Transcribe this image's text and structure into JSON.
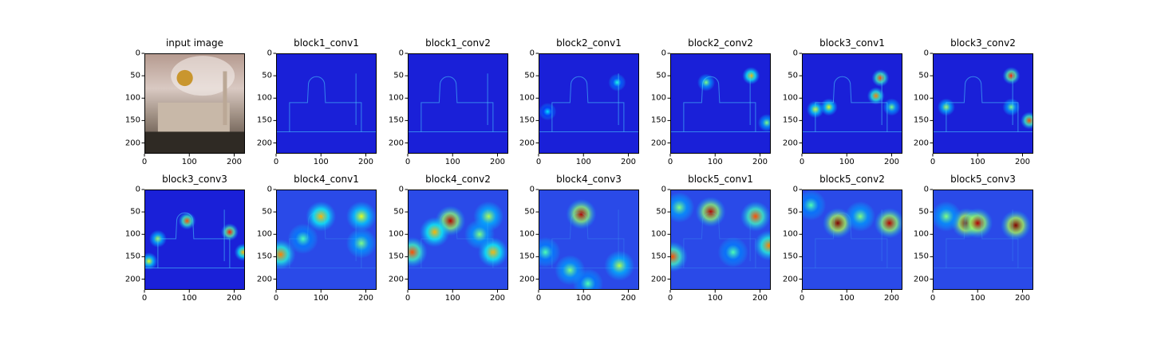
{
  "chart_data": [
    {
      "type": "heatmap",
      "title": "input image",
      "image": "photo",
      "hotspots": [],
      "xticks": [
        0,
        100,
        200
      ],
      "yticks": [
        0,
        50,
        100,
        150,
        200
      ],
      "xlim": [
        0,
        224
      ],
      "ylim": [
        224,
        0
      ]
    },
    {
      "type": "heatmap",
      "title": "block1_conv1",
      "image": "edges",
      "colormap": "jet",
      "hotspots": [],
      "xticks": [
        0,
        100,
        200
      ],
      "yticks": [
        0,
        50,
        100,
        150,
        200
      ],
      "xlim": [
        0,
        224
      ],
      "ylim": [
        224,
        0
      ]
    },
    {
      "type": "heatmap",
      "title": "block1_conv2",
      "image": "edges",
      "colormap": "jet",
      "hotspots": [],
      "xticks": [
        0,
        100,
        200
      ],
      "yticks": [
        0,
        50,
        100,
        150,
        200
      ],
      "xlim": [
        0,
        224
      ],
      "ylim": [
        224,
        0
      ]
    },
    {
      "type": "heatmap",
      "title": "block2_conv1",
      "image": "edges",
      "colormap": "jet",
      "hotspots": [
        [
          175,
          65,
          0.4
        ],
        [
          20,
          130,
          0.35
        ]
      ],
      "xticks": [
        0,
        100,
        200
      ],
      "yticks": [
        0,
        50,
        100,
        150,
        200
      ],
      "xlim": [
        0,
        224
      ],
      "ylim": [
        224,
        0
      ]
    },
    {
      "type": "heatmap",
      "title": "block2_conv2",
      "image": "edges",
      "colormap": "jet",
      "hotspots": [
        [
          180,
          50,
          0.7
        ],
        [
          80,
          65,
          0.5
        ],
        [
          215,
          155,
          0.5
        ]
      ],
      "xticks": [
        0,
        100,
        200
      ],
      "yticks": [
        0,
        50,
        100,
        150,
        200
      ],
      "xlim": [
        0,
        224
      ],
      "ylim": [
        224,
        0
      ]
    },
    {
      "type": "heatmap",
      "title": "block3_conv1",
      "image": "edges",
      "colormap": "jet",
      "hotspots": [
        [
          175,
          55,
          0.8
        ],
        [
          165,
          95,
          0.75
        ],
        [
          30,
          125,
          0.6
        ],
        [
          60,
          120,
          0.6
        ],
        [
          200,
          120,
          0.5
        ]
      ],
      "xticks": [
        0,
        100,
        200
      ],
      "yticks": [
        0,
        50,
        100,
        150,
        200
      ],
      "xlim": [
        0,
        224
      ],
      "ylim": [
        224,
        0
      ]
    },
    {
      "type": "heatmap",
      "title": "block3_conv2",
      "image": "edges",
      "colormap": "jet",
      "hotspots": [
        [
          175,
          50,
          0.85
        ],
        [
          215,
          150,
          0.8
        ],
        [
          30,
          120,
          0.55
        ],
        [
          175,
          120,
          0.5
        ]
      ],
      "xticks": [
        0,
        100,
        200
      ],
      "yticks": [
        0,
        50,
        100,
        150,
        200
      ],
      "xlim": [
        0,
        224
      ],
      "ylim": [
        224,
        0
      ]
    },
    {
      "type": "heatmap",
      "title": "block3_conv3",
      "image": "edges",
      "colormap": "jet",
      "hotspots": [
        [
          95,
          70,
          0.8
        ],
        [
          190,
          95,
          0.85
        ],
        [
          30,
          110,
          0.55
        ],
        [
          220,
          140,
          0.7
        ],
        [
          10,
          160,
          0.6
        ]
      ],
      "xticks": [
        0,
        100,
        200
      ],
      "yticks": [
        0,
        50,
        100,
        150,
        200
      ],
      "xlim": [
        0,
        224
      ],
      "ylim": [
        224,
        0
      ]
    },
    {
      "type": "heatmap",
      "title": "block4_conv1",
      "image": "blobs",
      "colormap": "jet",
      "hotspots": [
        [
          100,
          60,
          0.7
        ],
        [
          190,
          60,
          0.6
        ],
        [
          10,
          145,
          0.75
        ],
        [
          190,
          120,
          0.5
        ],
        [
          60,
          110,
          0.45
        ]
      ],
      "xticks": [
        0,
        100,
        200
      ],
      "yticks": [
        0,
        50,
        100,
        150,
        200
      ],
      "xlim": [
        0,
        224
      ],
      "ylim": [
        224,
        0
      ]
    },
    {
      "type": "heatmap",
      "title": "block4_conv2",
      "image": "blobs",
      "colormap": "jet",
      "hotspots": [
        [
          95,
          70,
          0.95
        ],
        [
          60,
          95,
          0.7
        ],
        [
          10,
          140,
          0.8
        ],
        [
          190,
          140,
          0.7
        ],
        [
          180,
          60,
          0.55
        ],
        [
          160,
          100,
          0.5
        ]
      ],
      "xticks": [
        0,
        100,
        200
      ],
      "yticks": [
        0,
        50,
        100,
        150,
        200
      ],
      "xlim": [
        0,
        224
      ],
      "ylim": [
        224,
        0
      ]
    },
    {
      "type": "heatmap",
      "title": "block4_conv3",
      "image": "blobs",
      "colormap": "jet",
      "hotspots": [
        [
          95,
          55,
          0.95
        ],
        [
          180,
          170,
          0.55
        ],
        [
          70,
          180,
          0.5
        ],
        [
          110,
          210,
          0.45
        ],
        [
          15,
          140,
          0.45
        ]
      ],
      "xticks": [
        0,
        100,
        200
      ],
      "yticks": [
        0,
        50,
        100,
        150,
        200
      ],
      "xlim": [
        0,
        224
      ],
      "ylim": [
        224,
        0
      ]
    },
    {
      "type": "heatmap",
      "title": "block5_conv1",
      "image": "blobs",
      "colormap": "jet",
      "hotspots": [
        [
          90,
          50,
          0.95
        ],
        [
          190,
          60,
          0.8
        ],
        [
          5,
          150,
          0.8
        ],
        [
          220,
          125,
          0.75
        ],
        [
          20,
          40,
          0.5
        ],
        [
          140,
          140,
          0.45
        ]
      ],
      "xticks": [
        0,
        100,
        200
      ],
      "yticks": [
        0,
        50,
        100,
        150,
        200
      ],
      "xlim": [
        0,
        224
      ],
      "ylim": [
        224,
        0
      ]
    },
    {
      "type": "heatmap",
      "title": "block5_conv2",
      "image": "blobs",
      "colormap": "jet",
      "hotspots": [
        [
          80,
          75,
          1.0
        ],
        [
          195,
          75,
          0.95
        ],
        [
          130,
          60,
          0.5
        ],
        [
          20,
          35,
          0.45
        ]
      ],
      "xticks": [
        0,
        100,
        200
      ],
      "yticks": [
        0,
        50,
        100,
        150,
        200
      ],
      "xlim": [
        0,
        224
      ],
      "ylim": [
        224,
        0
      ]
    },
    {
      "type": "heatmap",
      "title": "block5_conv3",
      "image": "blobs",
      "colormap": "jet",
      "hotspots": [
        [
          75,
          75,
          1.0
        ],
        [
          100,
          75,
          0.95
        ],
        [
          185,
          80,
          1.0
        ],
        [
          30,
          60,
          0.5
        ]
      ],
      "xticks": [
        0,
        100,
        200
      ],
      "yticks": [
        0,
        50,
        100,
        150,
        200
      ],
      "xlim": [
        0,
        224
      ],
      "ylim": [
        224,
        0
      ]
    }
  ]
}
